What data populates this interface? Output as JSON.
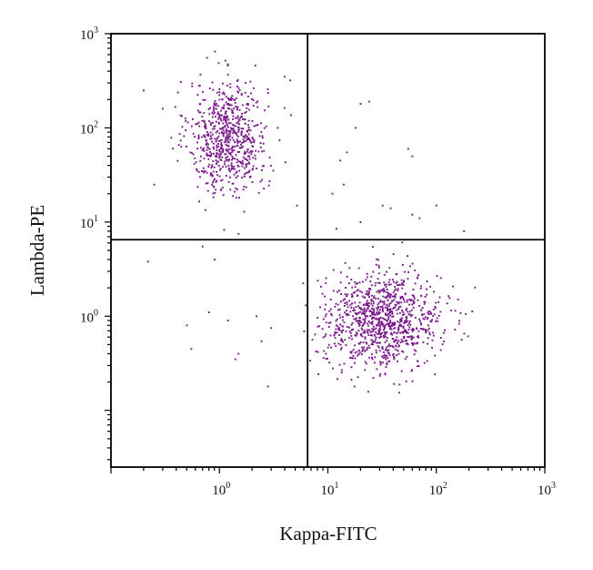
{
  "chart_data": {
    "type": "scatter",
    "xlabel": "Kappa-FITC",
    "ylabel": "Lambda-PE",
    "x_scale": "log",
    "y_scale": "log",
    "xlim": [
      0.1,
      1000
    ],
    "ylim": [
      0.025,
      1000
    ],
    "x_ticks": [
      {
        "base": "10",
        "exp": "0",
        "value": 1
      },
      {
        "base": "10",
        "exp": "1",
        "value": 10
      },
      {
        "base": "10",
        "exp": "2",
        "value": 100
      },
      {
        "base": "10",
        "exp": "3",
        "value": 1000
      }
    ],
    "y_ticks": [
      {
        "base": "10",
        "exp": "0",
        "value": 1
      },
      {
        "base": "10",
        "exp": "1",
        "value": 10
      },
      {
        "base": "10",
        "exp": "2",
        "value": 100
      },
      {
        "base": "10",
        "exp": "3",
        "value": 1000
      }
    ],
    "quadrant_gate": {
      "x": 6.5,
      "y": 6.5
    },
    "grid": false,
    "point_color": "#7a1a8a",
    "populations": [
      {
        "label": "",
        "approx_count": 700,
        "center": {
          "x": 1.2,
          "y": 80
        },
        "spread_log10": {
          "x": 0.18,
          "y": 0.3
        }
      },
      {
        "label": "",
        "approx_count": 1000,
        "center": {
          "x": 32,
          "y": 0.9
        },
        "spread_log10": {
          "x": 0.27,
          "y": 0.25
        }
      }
    ],
    "sparse_points": [
      {
        "x": 20,
        "y": 180
      },
      {
        "x": 24,
        "y": 190
      },
      {
        "x": 18,
        "y": 100
      },
      {
        "x": 15,
        "y": 55
      },
      {
        "x": 13,
        "y": 45
      },
      {
        "x": 60,
        "y": 50
      },
      {
        "x": 55,
        "y": 60
      },
      {
        "x": 14,
        "y": 25
      },
      {
        "x": 11,
        "y": 20
      },
      {
        "x": 32,
        "y": 15
      },
      {
        "x": 38,
        "y": 14
      },
      {
        "x": 60,
        "y": 12
      },
      {
        "x": 100,
        "y": 15
      },
      {
        "x": 20,
        "y": 10
      },
      {
        "x": 70,
        "y": 11
      },
      {
        "x": 12,
        "y": 8.5
      },
      {
        "x": 180,
        "y": 8
      },
      {
        "x": 0.22,
        "y": 3.8
      },
      {
        "x": 0.5,
        "y": 0.8
      },
      {
        "x": 0.55,
        "y": 0.45
      },
      {
        "x": 0.8,
        "y": 1.1
      },
      {
        "x": 1.5,
        "y": 0.4
      },
      {
        "x": 1.4,
        "y": 0.35
      },
      {
        "x": 2.2,
        "y": 1.0
      },
      {
        "x": 3.0,
        "y": 0.75
      },
      {
        "x": 1.2,
        "y": 0.9
      },
      {
        "x": 0.25,
        "y": 25
      },
      {
        "x": 0.2,
        "y": 250
      },
      {
        "x": 0.3,
        "y": 160
      },
      {
        "x": 4.5,
        "y": 320
      },
      {
        "x": 4.0,
        "y": 350
      },
      {
        "x": 5.2,
        "y": 15
      },
      {
        "x": 0.9,
        "y": 4.0
      },
      {
        "x": 1.5,
        "y": 7.5
      },
      {
        "x": 0.7,
        "y": 5.5
      }
    ]
  }
}
